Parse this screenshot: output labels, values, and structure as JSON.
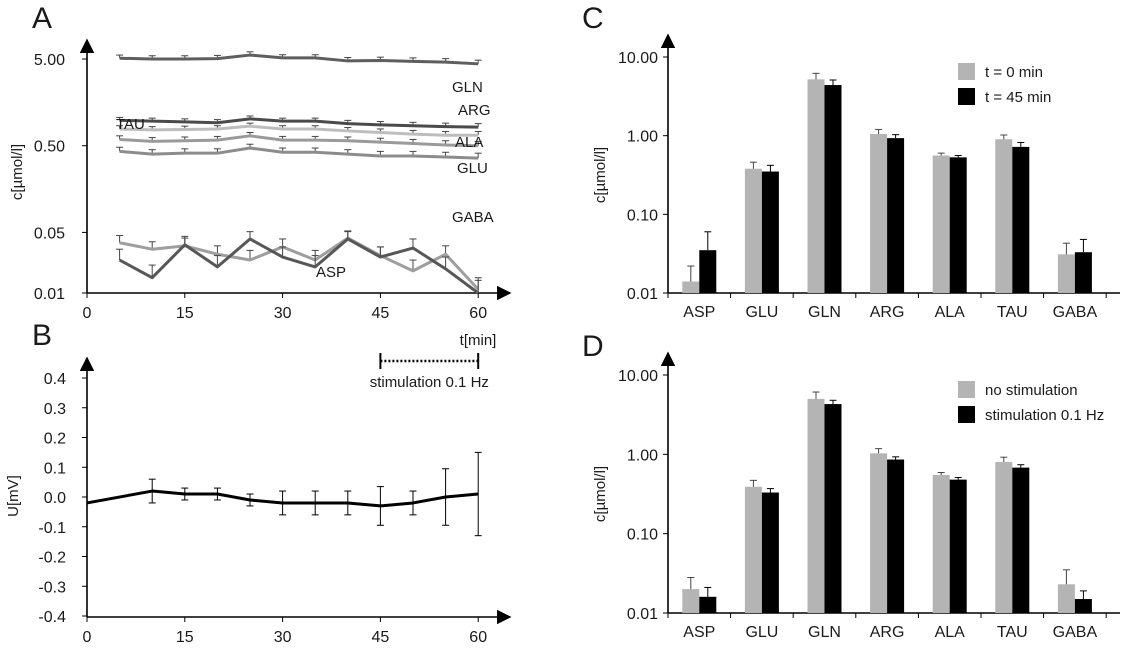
{
  "chart_data": [
    {
      "panel": "A",
      "type": "line",
      "ylabel": "c[µmol/l]",
      "xlabel": "t[min]",
      "yscale": "log",
      "ylim": [
        0.01,
        10
      ],
      "xlim": [
        0,
        60
      ],
      "yticks": [
        "5.00",
        "0.50",
        "0.05",
        "0.01"
      ],
      "xticks": [
        "0",
        "15",
        "30",
        "45",
        "60"
      ],
      "x": [
        5,
        10,
        15,
        20,
        25,
        30,
        35,
        40,
        45,
        50,
        55,
        60
      ],
      "series": [
        {
          "name": "GLN",
          "color": "#5e5e5e",
          "values": [
            5.1,
            5.0,
            5.0,
            5.05,
            5.55,
            5.15,
            5.15,
            4.75,
            4.8,
            4.7,
            4.6,
            4.4
          ],
          "err": [
            0.45,
            0.45,
            0.45,
            0.45,
            0.5,
            0.45,
            0.45,
            0.45,
            0.45,
            0.45,
            0.45,
            0.45
          ]
        },
        {
          "name": "ARG",
          "color": "#4a4a4a",
          "values": [
            0.98,
            0.96,
            0.94,
            0.92,
            1.02,
            0.96,
            0.96,
            0.9,
            0.87,
            0.85,
            0.83,
            0.82
          ],
          "err": [
            0.08,
            0.08,
            0.08,
            0.08,
            0.08,
            0.08,
            0.08,
            0.08,
            0.08,
            0.08,
            0.08,
            0.08
          ]
        },
        {
          "name": "TAU",
          "color": "#bdbdbd",
          "values": [
            0.78,
            0.76,
            0.77,
            0.78,
            0.84,
            0.78,
            0.78,
            0.74,
            0.71,
            0.68,
            0.66,
            0.66
          ],
          "err": [
            0.07,
            0.07,
            0.07,
            0.07,
            0.07,
            0.07,
            0.07,
            0.07,
            0.07,
            0.07,
            0.07,
            0.07
          ]
        },
        {
          "name": "ALA",
          "color": "#9a9a9a",
          "values": [
            0.59,
            0.56,
            0.57,
            0.58,
            0.65,
            0.58,
            0.58,
            0.57,
            0.55,
            0.53,
            0.51,
            0.5
          ],
          "err": [
            0.06,
            0.06,
            0.06,
            0.06,
            0.06,
            0.06,
            0.06,
            0.06,
            0.06,
            0.06,
            0.06,
            0.06
          ]
        },
        {
          "name": "GLU",
          "color": "#8c8c8c",
          "values": [
            0.43,
            0.4,
            0.41,
            0.41,
            0.47,
            0.42,
            0.42,
            0.4,
            0.38,
            0.38,
            0.37,
            0.36
          ],
          "err": [
            0.05,
            0.05,
            0.05,
            0.05,
            0.05,
            0.05,
            0.05,
            0.05,
            0.05,
            0.05,
            0.05,
            0.05
          ]
        },
        {
          "name": "GABA",
          "color": "#9e9e9e",
          "values": [
            0.038,
            0.032,
            0.035,
            0.028,
            0.024,
            0.034,
            0.024,
            0.043,
            0.027,
            0.018,
            0.028,
            0.011
          ],
          "err": [
            0.008,
            0.007,
            0.008,
            0.007,
            0.007,
            0.008,
            0.007,
            0.009,
            0.007,
            0.006,
            0.007,
            0.004
          ]
        },
        {
          "name": "ASP",
          "color": "#575757",
          "values": [
            0.024,
            0.015,
            0.036,
            0.02,
            0.042,
            0.026,
            0.02,
            0.042,
            0.026,
            0.033,
            0.019,
            0.01
          ],
          "err": [
            0.008,
            0.006,
            0.009,
            0.007,
            0.009,
            0.008,
            0.007,
            0.009,
            0.008,
            0.009,
            0.007,
            0.004
          ]
        }
      ],
      "annotation": "stimulation 0.1 Hz",
      "annotation_range": [
        45,
        60
      ]
    },
    {
      "panel": "B",
      "type": "line",
      "ylabel": "U[mV]",
      "xlabel": "",
      "ylim": [
        -0.4,
        0.4
      ],
      "xlim": [
        0,
        60
      ],
      "yticks": [
        "0.4",
        "0.3",
        "0.2",
        "0.1",
        "0.0",
        "-0.1",
        "-0.2",
        "-0.3",
        "-0.4"
      ],
      "xticks": [
        "0",
        "15",
        "30",
        "45",
        "60"
      ],
      "series": [
        {
          "name": "",
          "color": "#000000",
          "x": [
            0,
            10,
            15,
            20,
            25,
            30,
            35,
            40,
            45,
            50,
            55,
            60
          ],
          "values": [
            -0.02,
            0.02,
            0.01,
            0.01,
            -0.01,
            -0.02,
            -0.02,
            -0.02,
            -0.03,
            -0.02,
            0.0,
            0.01
          ],
          "err": [
            null,
            0.04,
            0.02,
            0.02,
            0.02,
            0.04,
            0.04,
            0.04,
            0.065,
            0.04,
            0.095,
            0.14
          ]
        }
      ]
    },
    {
      "panel": "C",
      "type": "bar",
      "ylabel": "c[µmol/l]",
      "yscale": "log",
      "ylim": [
        0.01,
        10
      ],
      "yticks": [
        "10.00",
        "1.00",
        "0.10",
        "0.01"
      ],
      "categories": [
        "ASP",
        "GLU",
        "GLN",
        "ARG",
        "ALA",
        "TAU",
        "GABA"
      ],
      "legend_position": "top-right",
      "series": [
        {
          "name": "t = 0 min",
          "color": "#b4b4b4",
          "values": [
            0.014,
            0.38,
            5.2,
            1.05,
            0.56,
            0.9,
            0.031
          ],
          "err": [
            0.008,
            0.08,
            1.0,
            0.15,
            0.04,
            0.12,
            0.012
          ]
        },
        {
          "name": "t = 45 min",
          "color": "#000000",
          "values": [
            0.035,
            0.35,
            4.4,
            0.93,
            0.53,
            0.72,
            0.033
          ],
          "err": [
            0.025,
            0.07,
            0.7,
            0.1,
            0.03,
            0.1,
            0.015
          ]
        }
      ]
    },
    {
      "panel": "D",
      "type": "bar",
      "ylabel": "c[µmol/l]",
      "yscale": "log",
      "ylim": [
        0.01,
        10
      ],
      "yticks": [
        "10.00",
        "1.00",
        "0.10",
        "0.01"
      ],
      "categories": [
        "ASP",
        "GLU",
        "GLN",
        "ARG",
        "ALA",
        "TAU",
        "GABA"
      ],
      "legend_position": "top-right",
      "series": [
        {
          "name": "no stimulation",
          "color": "#b4b4b4",
          "values": [
            0.02,
            0.39,
            5.0,
            1.03,
            0.55,
            0.8,
            0.023
          ],
          "err": [
            0.008,
            0.08,
            1.1,
            0.15,
            0.04,
            0.12,
            0.012
          ]
        },
        {
          "name": "stimulation 0.1 Hz",
          "color": "#000000",
          "values": [
            0.016,
            0.33,
            4.3,
            0.86,
            0.48,
            0.68,
            0.015
          ],
          "err": [
            0.005,
            0.04,
            0.5,
            0.07,
            0.03,
            0.06,
            0.004
          ]
        }
      ]
    }
  ]
}
